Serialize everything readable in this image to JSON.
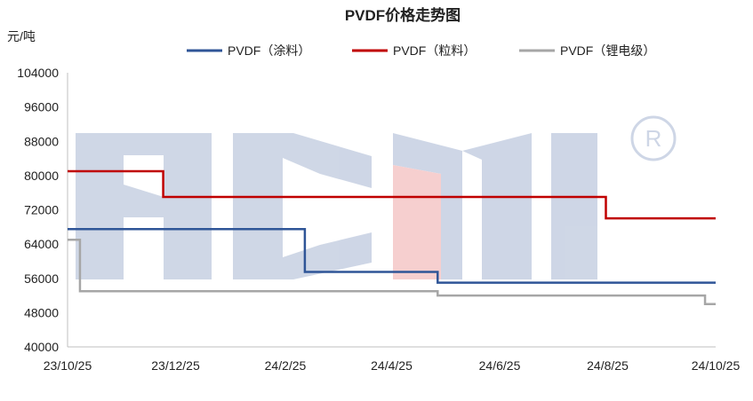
{
  "chart_data": {
    "type": "line",
    "title": "PVDF价格走势图",
    "ylabel": "元/吨",
    "xlabel": "",
    "ylim": [
      40000,
      104000
    ],
    "y_ticks": [
      "104000",
      "96000",
      "88000",
      "80000",
      "72000",
      "64000",
      "56000",
      "48000",
      "40000"
    ],
    "x_tick_labels": [
      "23/10/25",
      "23/12/25",
      "24/2/25",
      "24/4/25",
      "24/6/25",
      "24/8/25",
      "24/10/25"
    ],
    "legend_position": "top",
    "grid": false,
    "watermark": "ACMI®",
    "series": [
      {
        "name": "PVDF（涂料）",
        "color": "#2f5597",
        "steps": [
          [
            "23/10/25",
            67500
          ],
          [
            "24/3/7",
            57500
          ],
          [
            "24/5/21",
            55000
          ],
          [
            "24/10/25",
            55000
          ]
        ]
      },
      {
        "name": "PVDF（粒料）",
        "color": "#c00000",
        "steps": [
          [
            "23/10/25",
            81000
          ],
          [
            "23/12/18",
            75000
          ],
          [
            "24/8/24",
            70000
          ],
          [
            "24/10/25",
            70000
          ]
        ]
      },
      {
        "name": "PVDF（锂电级）",
        "color": "#a6a6a6",
        "steps": [
          [
            "23/10/25",
            65000
          ],
          [
            "23/11/1",
            53000
          ],
          [
            "24/5/21",
            52000
          ],
          [
            "24/10/19",
            50000
          ],
          [
            "24/10/25",
            50000
          ]
        ]
      }
    ]
  }
}
